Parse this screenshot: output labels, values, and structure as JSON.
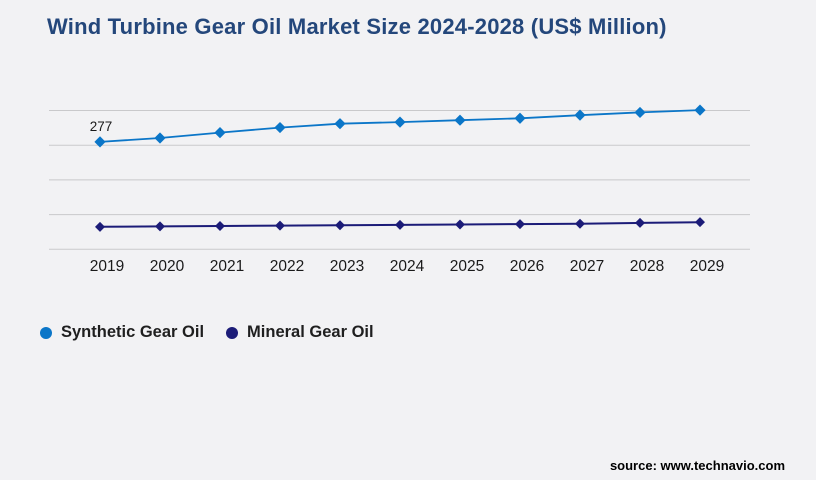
{
  "header": {
    "title": "Wind Turbine Gear Oil Market Size 2024-2028 (US$ Million)",
    "title_color": "#24477b"
  },
  "chart_data": {
    "type": "line",
    "title": "Wind Turbine Gear Oil Market Size 2024-2028 (US$ Million)",
    "xlabel": "",
    "ylabel": "",
    "categories": [
      "2019",
      "2020",
      "2021",
      "2022",
      "2023",
      "2024",
      "2025",
      "2026",
      "2027",
      "2028",
      "2029"
    ],
    "series": [
      {
        "name": "Synthetic Gear Oil",
        "color": "#0b76c8",
        "marker": "diamond",
        "values": [
          277,
          287,
          301,
          314,
          324,
          328,
          333,
          338,
          346,
          353,
          359
        ]
      },
      {
        "name": "Mineral Gear Oil",
        "color": "#1c1c78",
        "marker": "diamond",
        "values": [
          58,
          59,
          60,
          61,
          62,
          63,
          64,
          65,
          66,
          68,
          70
        ]
      }
    ],
    "point_labels": [
      {
        "series_index": 0,
        "category_index": 0,
        "text": "277"
      }
    ],
    "ylim": [
      0,
      358
    ],
    "y_gridlines": 5,
    "y_axis_labels_visible": false,
    "grid": true,
    "grid_color": "#c9c9cb",
    "legend_position": "bottom-left",
    "background": "#f2f2f4"
  },
  "footer": {
    "source_label": "source: www.technavio.com"
  }
}
